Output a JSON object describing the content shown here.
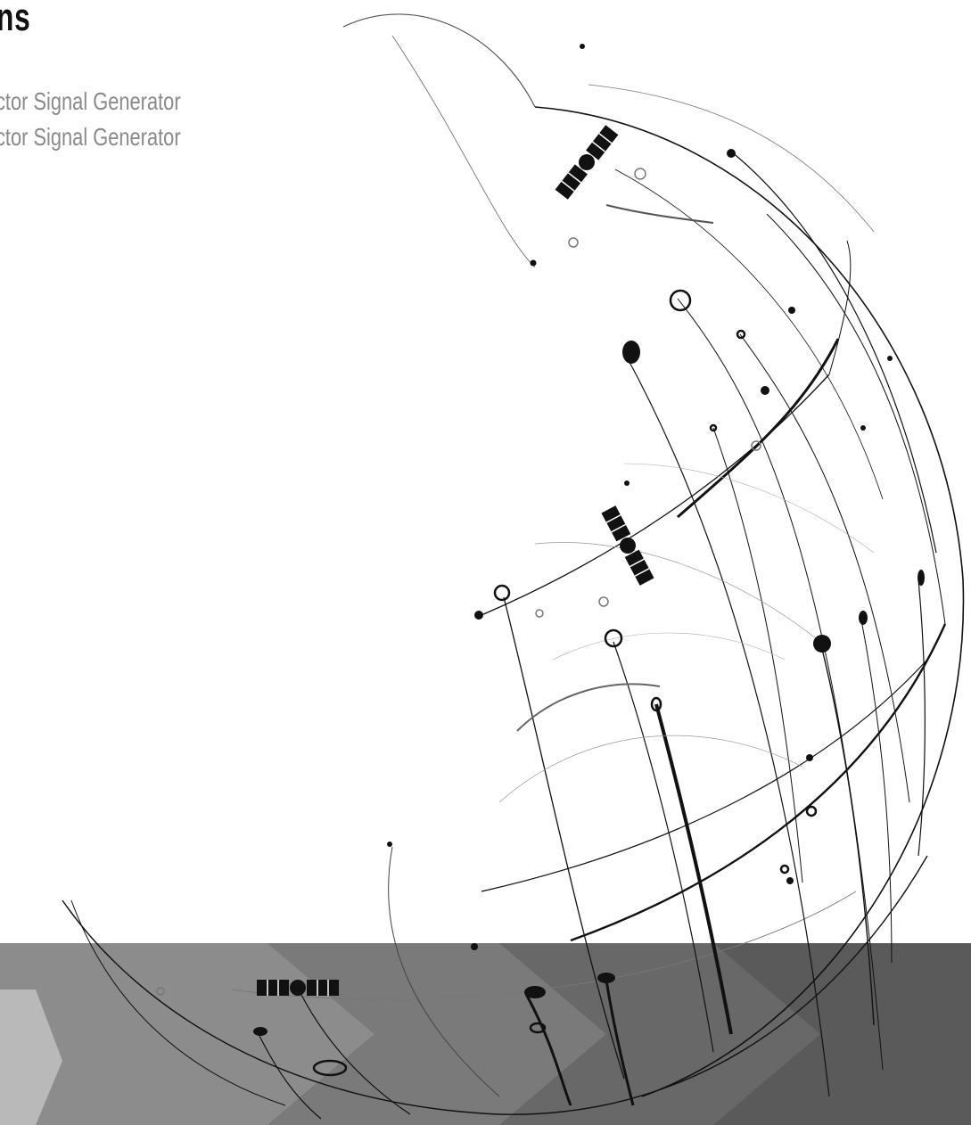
{
  "cover": {
    "title_fragment": "ns",
    "subtitles": [
      "ctor Signal Generator",
      "ctor Signal Generator"
    ]
  },
  "colors": {
    "title": "#111111",
    "subtitle": "#8a8a8a",
    "band_dark": "#5a5a5a",
    "band_light": "#b7b7b7",
    "line": "#111111"
  },
  "decoration": {
    "subject": "globe-of-orbital-lines-with-satellites",
    "satellite_icons": [
      "satellite-icon",
      "satellite-icon",
      "satellite-icon"
    ]
  }
}
